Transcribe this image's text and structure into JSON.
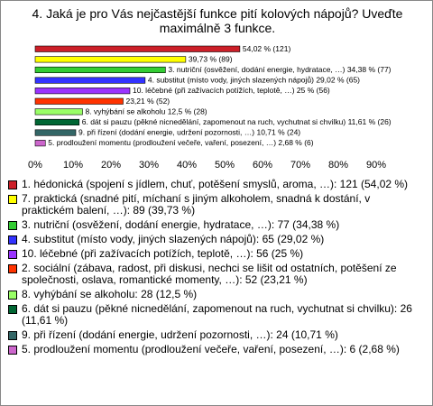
{
  "chart_data": {
    "type": "hbar",
    "title": "4. Jaká je pro Vás nejčastější funkce pití kolových nápojů? Uveďte maximálně 3 funkce.",
    "values": [
      54.02,
      39.73,
      34.38,
      29.02,
      25,
      23.21,
      12.5,
      11.61,
      10.71,
      2.68
    ],
    "value_labels": [
      "54,02 % (121)",
      "39,73 % (89)",
      "3. nutriční (osvěžení, dodání energie, hydratace, …) 34,38 % (77)",
      "4. substitut (místo vody, jiných slazených nápojů) 29,02 % (65)",
      "10. léčebné (při zažívacích potížích, teplotě, …) 25 % (56)",
      "23,21 % (52)",
      "8. vyhýbání se alkoholu 12,5 % (28)",
      "6. dát si pauzu (pěkné nicnedělání, zapomenout na ruch, vychutnat si chvilku) 11,61 % (26)",
      "9. při řízení (dodání energie, udržení pozornosti, …) 10,71 % (24)",
      "5. prodloužení momentu (prodloužení večeře, vaření, posezení, …) 2,68 % (6)"
    ],
    "colors": [
      "#cc1f28",
      "#ffff00",
      "#33cc33",
      "#3333ff",
      "#9933ff",
      "#ff3300",
      "#99ff66",
      "#006633",
      "#336666",
      "#cc66cc"
    ],
    "legend": [
      "1. hédonická (spojení s jídlem, chuť, potěšení smyslů, aroma, …): 121 (54,02 %)",
      "7. praktická (snadné pití, míchaní s jiným alkoholem, snadná k dostání, v praktickém balení, …): 89 (39,73 %)",
      "3. nutriční (osvěžení, dodání energie, hydratace, …): 77 (34,38 %)",
      "4. substitut (místo vody, jiných slazených nápojů): 65 (29,02 %)",
      "10. léčebné (při zažívacích potížích, teplotě, …): 56 (25 %)",
      "2. sociální (zábava, radost, při diskusi, nechci se lišit od ostatních, potěšení ze společnosti, oslava, romantické momenty, …): 52 (23,21 %)",
      "8. vyhýbání se alkoholu: 28 (12,5 %)",
      "6. dát si pauzu (pěkné nicnedělání, zapomenout na ruch, vychutnat si chvilku): 26 (11,61 %)",
      "9. při řízení (dodání energie, udržení pozornosti, …): 24 (10,71 %)",
      "5. prodloužení momentu (prodloužení večeře, vaření, posezení, …): 6 (2,68 %)"
    ],
    "xlim": [
      0,
      100
    ],
    "xticks": [
      {
        "value": 0,
        "label": "0%"
      },
      {
        "value": 10,
        "label": "10%"
      },
      {
        "value": 20,
        "label": "20%"
      },
      {
        "value": 30,
        "label": "30%"
      },
      {
        "value": 40,
        "label": "40%"
      },
      {
        "value": 50,
        "label": "50%"
      },
      {
        "value": 60,
        "label": "60%"
      },
      {
        "value": 70,
        "label": "70%"
      },
      {
        "value": 80,
        "label": "80%"
      },
      {
        "value": 90,
        "label": "90%"
      }
    ]
  }
}
